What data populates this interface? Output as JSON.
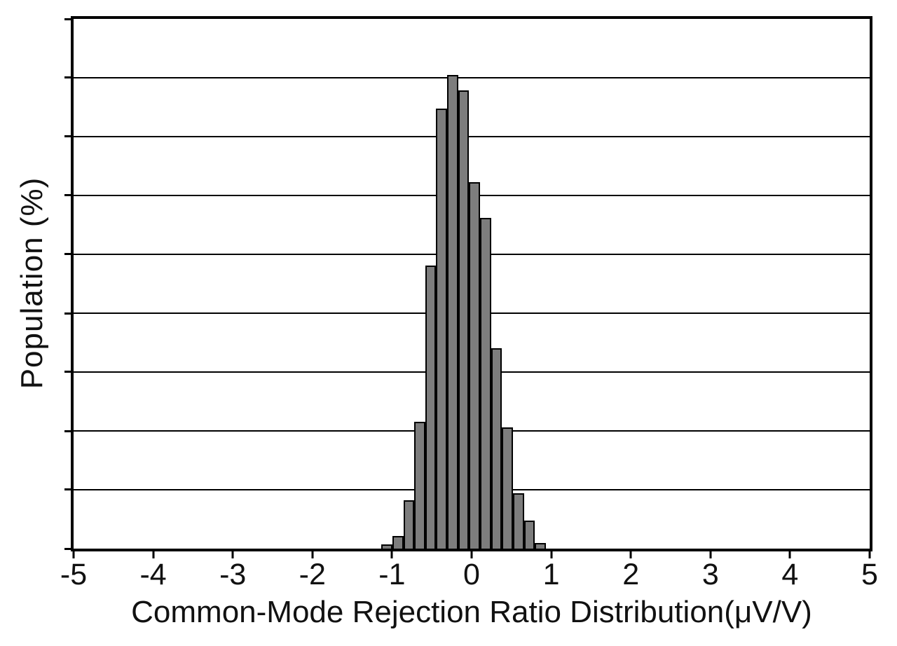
{
  "chart_data": {
    "type": "bar",
    "subtype": "histogram",
    "title": "",
    "xlabel": "Common-Mode Rejection Ratio Distribution(μV/V)",
    "ylabel": "Population (%)",
    "xlim": [
      -5,
      5
    ],
    "x_ticks": [
      -5,
      -4,
      -3,
      -2,
      -1,
      0,
      1,
      2,
      3,
      4,
      5
    ],
    "ylim": [
      0,
      9
    ],
    "y_divisions": 9,
    "y_tick_labels": [],
    "grid": "horizontal",
    "legend_position": "none",
    "colors": {
      "bar_fill": "#7d7d7d",
      "bar_edge": "#000000",
      "axis": "#000000",
      "background": "#ffffff"
    },
    "bin_width": 0.137,
    "bars": [
      {
        "x0": -1.133,
        "x1": -0.996,
        "h": 0.07
      },
      {
        "x0": -0.996,
        "x1": -0.858,
        "h": 0.22
      },
      {
        "x0": -0.858,
        "x1": -0.72,
        "h": 0.82
      },
      {
        "x0": -0.72,
        "x1": -0.582,
        "h": 2.15
      },
      {
        "x0": -0.582,
        "x1": -0.445,
        "h": 4.81
      },
      {
        "x0": -0.445,
        "x1": -0.307,
        "h": 7.48
      },
      {
        "x0": -0.307,
        "x1": -0.169,
        "h": 8.05
      },
      {
        "x0": -0.169,
        "x1": -0.032,
        "h": 7.78
      },
      {
        "x0": -0.032,
        "x1": 0.106,
        "h": 6.23
      },
      {
        "x0": 0.106,
        "x1": 0.244,
        "h": 5.62
      },
      {
        "x0": 0.244,
        "x1": 0.382,
        "h": 3.41
      },
      {
        "x0": 0.382,
        "x1": 0.519,
        "h": 2.06
      },
      {
        "x0": 0.519,
        "x1": 0.657,
        "h": 0.94
      },
      {
        "x0": 0.657,
        "x1": 0.795,
        "h": 0.48
      },
      {
        "x0": 0.795,
        "x1": 0.932,
        "h": 0.09
      }
    ]
  }
}
